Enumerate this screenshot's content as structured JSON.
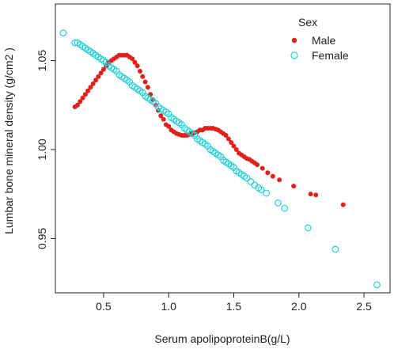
{
  "chart_data": {
    "type": "scatter",
    "title": "",
    "xlabel": "Serum apolipoproteinB(g/L)",
    "ylabel": "Lumbar bone mineral density (g/cm2 )",
    "xlim": [
      0.13,
      2.7
    ],
    "ylim": [
      0.9195,
      1.0818
    ],
    "x_ticks": [
      "0.5",
      "1.0",
      "1.5",
      "2.0",
      "2.5"
    ],
    "y_ticks": [
      "0.95",
      "1.00",
      "1.05"
    ],
    "legend": {
      "title": "Sex",
      "position": "top-right"
    },
    "series": [
      {
        "name": "Male",
        "color": "#e0201b",
        "marker": "filled-circle",
        "points": [
          [
            0.28,
            1.024
          ],
          [
            0.3,
            1.025
          ],
          [
            0.32,
            1.027
          ],
          [
            0.34,
            1.029
          ],
          [
            0.36,
            1.031
          ],
          [
            0.38,
            1.033
          ],
          [
            0.4,
            1.035
          ],
          [
            0.42,
            1.037
          ],
          [
            0.44,
            1.039
          ],
          [
            0.46,
            1.041
          ],
          [
            0.48,
            1.043
          ],
          [
            0.5,
            1.045
          ],
          [
            0.52,
            1.047
          ],
          [
            0.54,
            1.049
          ],
          [
            0.56,
            1.05
          ],
          [
            0.58,
            1.051
          ],
          [
            0.6,
            1.052
          ],
          [
            0.62,
            1.053
          ],
          [
            0.64,
            1.053
          ],
          [
            0.66,
            1.053
          ],
          [
            0.68,
            1.053
          ],
          [
            0.7,
            1.052
          ],
          [
            0.72,
            1.051
          ],
          [
            0.74,
            1.049
          ],
          [
            0.76,
            1.047
          ],
          [
            0.78,
            1.044
          ],
          [
            0.8,
            1.041
          ],
          [
            0.82,
            1.038
          ],
          [
            0.84,
            1.035
          ],
          [
            0.86,
            1.031
          ],
          [
            0.88,
            1.028
          ],
          [
            0.9,
            1.025
          ],
          [
            0.92,
            1.022
          ],
          [
            0.94,
            1.019
          ],
          [
            0.96,
            1.017
          ],
          [
            0.98,
            1.014
          ],
          [
            1.0,
            1.013
          ],
          [
            1.02,
            1.011
          ],
          [
            1.04,
            1.01
          ],
          [
            1.06,
            1.009
          ],
          [
            1.08,
            1.0085
          ],
          [
            1.1,
            1.008
          ],
          [
            1.12,
            1.008
          ],
          [
            1.14,
            1.008
          ],
          [
            1.16,
            1.0085
          ],
          [
            1.18,
            1.009
          ],
          [
            1.2,
            1.0095
          ],
          [
            1.22,
            1.01
          ],
          [
            1.24,
            1.011
          ],
          [
            1.26,
            1.011
          ],
          [
            1.28,
            1.012
          ],
          [
            1.3,
            1.012
          ],
          [
            1.32,
            1.012
          ],
          [
            1.34,
            1.012
          ],
          [
            1.36,
            1.0115
          ],
          [
            1.38,
            1.011
          ],
          [
            1.4,
            1.01
          ],
          [
            1.42,
            1.009
          ],
          [
            1.44,
            1.008
          ],
          [
            1.46,
            1.006
          ],
          [
            1.48,
            1.004
          ],
          [
            1.5,
            1.002
          ],
          [
            1.52,
            1.0
          ],
          [
            1.54,
            0.998
          ],
          [
            1.56,
            0.997
          ],
          [
            1.58,
            0.996
          ],
          [
            1.6,
            0.995
          ],
          [
            1.62,
            0.9945
          ],
          [
            1.64,
            0.9935
          ],
          [
            1.66,
            0.9925
          ],
          [
            1.68,
            0.9915
          ],
          [
            1.72,
            0.9895
          ],
          [
            1.76,
            0.987
          ],
          [
            1.8,
            0.985
          ],
          [
            1.85,
            0.983
          ],
          [
            1.96,
            0.9795
          ],
          [
            2.09,
            0.975
          ],
          [
            2.13,
            0.9745
          ],
          [
            2.34,
            0.969
          ]
        ]
      },
      {
        "name": "Female",
        "color": "#20d0d8",
        "marker": "open-circle",
        "points": [
          [
            0.19,
            1.0655
          ],
          [
            0.28,
            1.06
          ],
          [
            0.3,
            1.06
          ],
          [
            0.32,
            1.059
          ],
          [
            0.34,
            1.058
          ],
          [
            0.36,
            1.057
          ],
          [
            0.38,
            1.056
          ],
          [
            0.4,
            1.055
          ],
          [
            0.42,
            1.054
          ],
          [
            0.44,
            1.053
          ],
          [
            0.46,
            1.052
          ],
          [
            0.48,
            1.051
          ],
          [
            0.5,
            1.05
          ],
          [
            0.52,
            1.049
          ],
          [
            0.54,
            1.047
          ],
          [
            0.56,
            1.046
          ],
          [
            0.58,
            1.045
          ],
          [
            0.6,
            1.044
          ],
          [
            0.62,
            1.042
          ],
          [
            0.64,
            1.041
          ],
          [
            0.66,
            1.04
          ],
          [
            0.68,
            1.039
          ],
          [
            0.7,
            1.038
          ],
          [
            0.72,
            1.036
          ],
          [
            0.74,
            1.035
          ],
          [
            0.76,
            1.034
          ],
          [
            0.78,
            1.033
          ],
          [
            0.8,
            1.032
          ],
          [
            0.82,
            1.03
          ],
          [
            0.84,
            1.029
          ],
          [
            0.86,
            1.028
          ],
          [
            0.88,
            1.027
          ],
          [
            0.9,
            1.026
          ],
          [
            0.92,
            1.024
          ],
          [
            0.94,
            1.023
          ],
          [
            0.96,
            1.022
          ],
          [
            0.98,
            1.021
          ],
          [
            1.0,
            1.02
          ],
          [
            1.02,
            1.018
          ],
          [
            1.04,
            1.017
          ],
          [
            1.06,
            1.016
          ],
          [
            1.08,
            1.015
          ],
          [
            1.1,
            1.014
          ],
          [
            1.12,
            1.012
          ],
          [
            1.14,
            1.011
          ],
          [
            1.16,
            1.01
          ],
          [
            1.18,
            1.009
          ],
          [
            1.2,
            1.008
          ],
          [
            1.22,
            1.006
          ],
          [
            1.24,
            1.005
          ],
          [
            1.26,
            1.004
          ],
          [
            1.28,
            1.003
          ],
          [
            1.3,
            1.002
          ],
          [
            1.32,
            1.0
          ],
          [
            1.34,
            0.999
          ],
          [
            1.36,
            0.998
          ],
          [
            1.38,
            0.997
          ],
          [
            1.4,
            0.996
          ],
          [
            1.42,
            0.994
          ],
          [
            1.44,
            0.993
          ],
          [
            1.46,
            0.992
          ],
          [
            1.48,
            0.991
          ],
          [
            1.5,
            0.99
          ],
          [
            1.52,
            0.988
          ],
          [
            1.54,
            0.987
          ],
          [
            1.56,
            0.986
          ],
          [
            1.58,
            0.985
          ],
          [
            1.6,
            0.984
          ],
          [
            1.63,
            0.982
          ],
          [
            1.66,
            0.98
          ],
          [
            1.69,
            0.9785
          ],
          [
            1.71,
            0.9775
          ],
          [
            1.75,
            0.9755
          ],
          [
            1.84,
            0.97
          ],
          [
            1.89,
            0.967
          ],
          [
            2.07,
            0.956
          ],
          [
            2.28,
            0.944
          ],
          [
            2.6,
            0.924
          ]
        ]
      }
    ]
  }
}
